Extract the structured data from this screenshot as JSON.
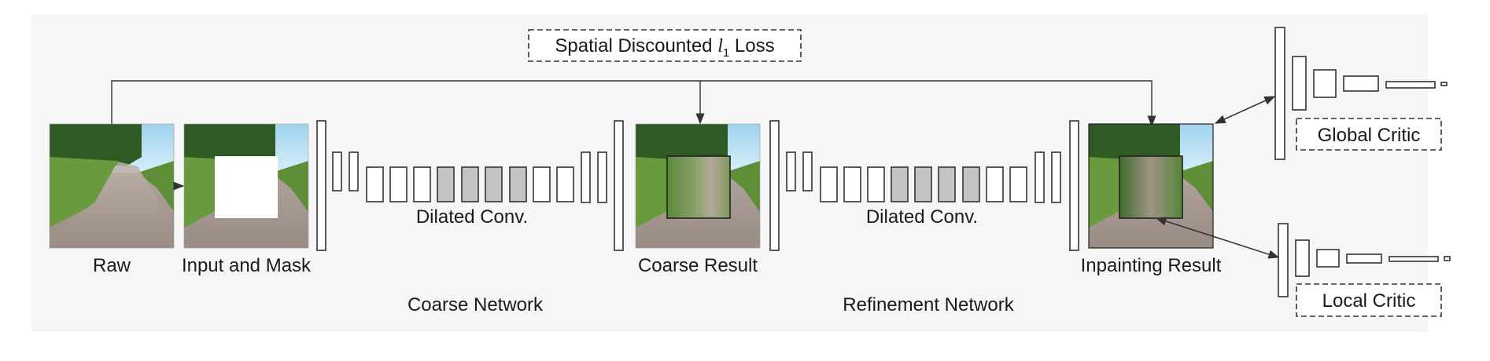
{
  "diagram": {
    "loss_box": {
      "prefix": "Spatial Discounted ",
      "symbol": "l",
      "subscript": "1",
      "suffix": " Loss"
    },
    "image_labels": {
      "raw": "Raw",
      "input_mask": "Input and Mask",
      "coarse_result": "Coarse Result",
      "inpainting_result": "Inpainting Result"
    },
    "coarse_network": {
      "label": "Coarse Network",
      "dilated_label": "Dilated Conv."
    },
    "refinement_network": {
      "label": "Refinement Network",
      "dilated_label": "Dilated Conv."
    },
    "critics": {
      "global": "Global Critic",
      "local": "Local Critic"
    },
    "colors": {
      "sky": "#9fd2ee",
      "trees": "#2f5a24",
      "grass": "#6a9a3e",
      "road": "#a99a92",
      "mask": "#ffffff",
      "dilated_block": "#c4c4c4",
      "panel_bg": "#f6f6f6"
    }
  }
}
